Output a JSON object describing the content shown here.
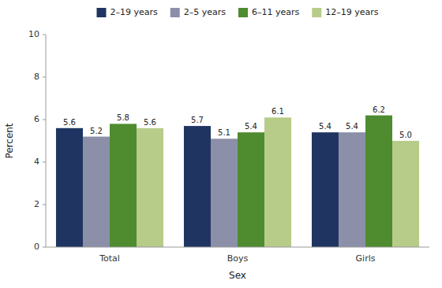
{
  "chart_data": {
    "type": "bar",
    "categories": [
      "Total",
      "Boys",
      "Girls"
    ],
    "series": [
      {
        "name": "2–19 years",
        "color": "#1f3461",
        "values": [
          5.6,
          5.7,
          5.4
        ],
        "value_labels": [
          "5.6",
          "5.7",
          "5.4"
        ]
      },
      {
        "name": "2–5 years",
        "color": "#8b90a8",
        "values": [
          5.2,
          5.1,
          5.4
        ],
        "value_labels": [
          "5.2",
          "5.1",
          "5.4"
        ]
      },
      {
        "name": "6–11 years",
        "color": "#4e8c2f",
        "values": [
          5.8,
          5.4,
          6.2
        ],
        "value_labels": [
          "5.8",
          "5.4",
          "6.2"
        ]
      },
      {
        "name": "12–19 years",
        "color": "#b8cc8a",
        "values": [
          5.6,
          6.1,
          5.0
        ],
        "value_labels": [
          "5.6",
          "6.1",
          "5.0"
        ]
      }
    ],
    "xlabel": "Sex",
    "ylabel": "Percent",
    "ylim": [
      0,
      10
    ],
    "yticks": [
      0,
      2,
      4,
      6,
      8,
      10
    ],
    "grid": false,
    "data_labels": true,
    "legend": "top"
  }
}
